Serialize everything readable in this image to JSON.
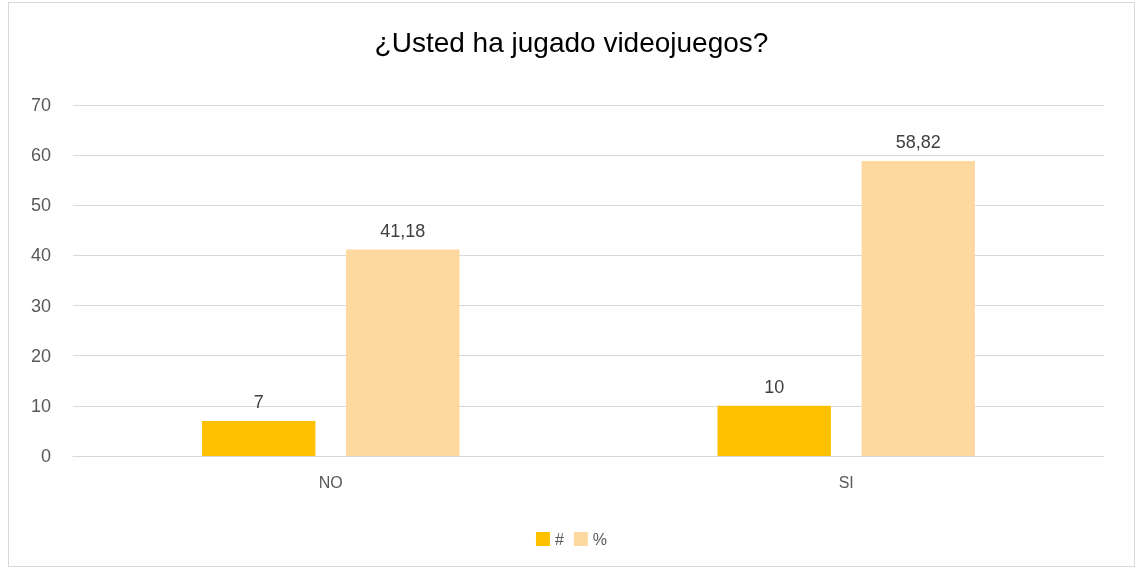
{
  "chart_data": {
    "type": "bar",
    "title": "¿Usted ha jugado videojuegos?",
    "categories": [
      "NO",
      "SI"
    ],
    "series": [
      {
        "name": "#",
        "color": "#ffc000",
        "values": [
          7,
          10
        ],
        "value_labels": [
          "7",
          "10"
        ]
      },
      {
        "name": "%",
        "color": "#fed99f",
        "values": [
          41.18,
          58.82
        ],
        "value_labels": [
          "41,18",
          "58,82"
        ]
      }
    ],
    "ylim": [
      0,
      70
    ],
    "yticks": [
      0,
      10,
      20,
      30,
      40,
      50,
      60,
      70
    ],
    "grid": "y",
    "legend": "bottom"
  }
}
